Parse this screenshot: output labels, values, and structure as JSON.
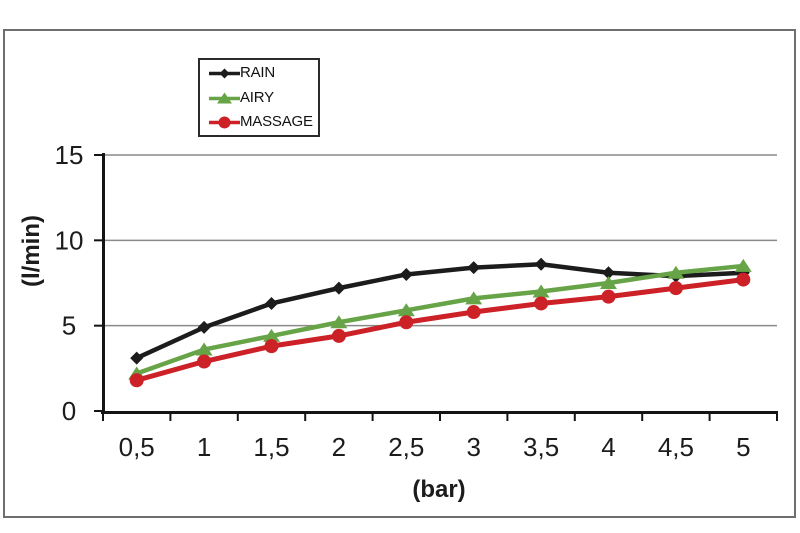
{
  "chart_data": {
    "type": "line",
    "title": "",
    "xlabel": "(bar)",
    "ylabel": "(l/min)",
    "categories": [
      "0,5",
      "1",
      "1,5",
      "2",
      "2,5",
      "3",
      "3,5",
      "4",
      "4,5",
      "5"
    ],
    "series": [
      {
        "name": "RAIN",
        "marker": "diamond",
        "color": "#1c1c1c",
        "values": [
          3.1,
          4.9,
          6.3,
          7.2,
          8.0,
          8.4,
          8.6,
          8.1,
          7.9,
          8.1
        ]
      },
      {
        "name": "AIRY",
        "marker": "triangle",
        "color": "#67a447",
        "values": [
          2.2,
          3.6,
          4.4,
          5.2,
          5.9,
          6.6,
          7.0,
          7.5,
          8.1,
          8.5
        ]
      },
      {
        "name": "MASSAGE",
        "marker": "circle",
        "color": "#cc2127",
        "values": [
          1.8,
          2.9,
          3.8,
          4.4,
          5.2,
          5.8,
          6.3,
          6.7,
          7.2,
          7.7
        ]
      }
    ],
    "yticks": [
      0,
      5,
      10,
      15
    ],
    "ylim": [
      0,
      15
    ],
    "grid": true,
    "legend_position": "inside-top-left",
    "colors": {
      "axis": "#141414",
      "gridline": "#8a8a8a",
      "tick_label": "#1c1c1c",
      "frame_border": "#6e6e6e",
      "legend_border": "#2b2b2b"
    }
  }
}
